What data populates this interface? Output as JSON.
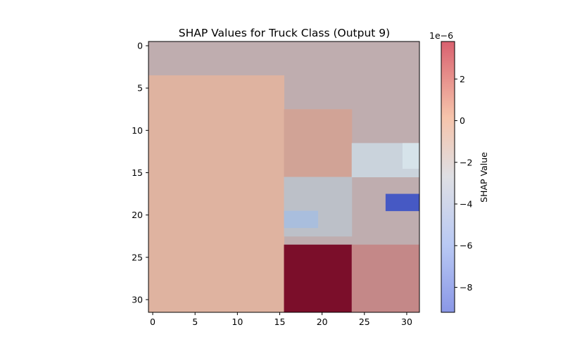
{
  "chart_data": {
    "type": "heatmap",
    "title": "SHAP Values for Truck Class (Output 9)",
    "xlabel": "",
    "ylabel": "",
    "x_ticks": [
      0,
      5,
      10,
      15,
      20,
      25,
      30
    ],
    "y_ticks": [
      0,
      5,
      10,
      15,
      20,
      25,
      30
    ],
    "xlim": [
      -0.5,
      31.5
    ],
    "ylim": [
      31.5,
      -0.5
    ],
    "grid": false,
    "colorbar": {
      "label": "SHAP Value",
      "scale_label": "1e−6",
      "range": [
        -9.2,
        3.8
      ],
      "ticks": [
        -8,
        -6,
        -4,
        -2,
        0,
        2
      ],
      "tick_labels": [
        "−8",
        "−6",
        "−4",
        "−2",
        "0",
        "2"
      ],
      "colormap": "coolwarm"
    },
    "regions": [
      {
        "name": "sky",
        "x": [
          0,
          31
        ],
        "y": [
          0,
          31
        ],
        "color": "#bfadaf"
      },
      {
        "name": "truck-body",
        "x": [
          0,
          15
        ],
        "y": [
          4,
          31
        ],
        "color": "#dfb3a0"
      },
      {
        "name": "cab-upper",
        "x": [
          16,
          23
        ],
        "y": [
          8,
          15
        ],
        "color": "#d1a396"
      },
      {
        "name": "window",
        "x": [
          16,
          23
        ],
        "y": [
          16,
          22
        ],
        "color": "#bcc0c8"
      },
      {
        "name": "window-low",
        "x": [
          16,
          19
        ],
        "y": [
          20,
          21
        ],
        "color": "#a9bedd"
      },
      {
        "name": "sky-right",
        "x": [
          24,
          31
        ],
        "y": [
          12,
          15
        ],
        "color": "#cad3dc"
      },
      {
        "name": "sky-right-edge",
        "x": [
          30,
          31
        ],
        "y": [
          12,
          14
        ],
        "color": "#d6e3ea"
      },
      {
        "name": "strong-negative",
        "x": [
          28,
          31
        ],
        "y": [
          18,
          19
        ],
        "color": "#4659c4"
      },
      {
        "name": "strong-positive",
        "x": [
          16,
          23
        ],
        "y": [
          24,
          31
        ],
        "color": "#7b0e2a"
      },
      {
        "name": "wheel-area",
        "x": [
          24,
          31
        ],
        "y": [
          24,
          31
        ],
        "color": "#c48888"
      }
    ]
  }
}
